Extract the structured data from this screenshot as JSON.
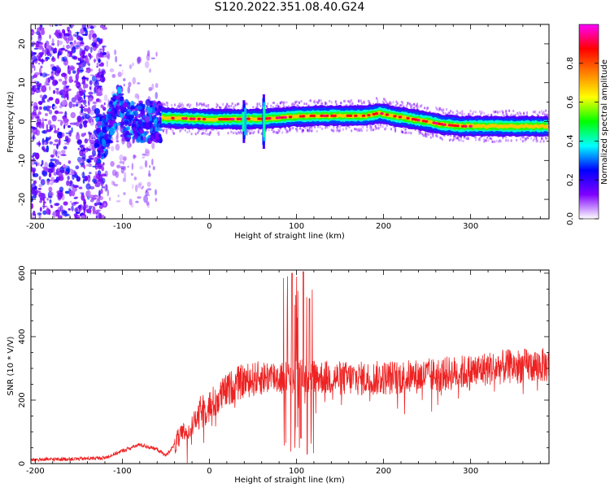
{
  "figure": {
    "title": "S120.2022.351.08.40.G24"
  },
  "chart_data": [
    {
      "type": "heatmap",
      "xlabel": "Height of straight line (km)",
      "ylabel": "Frequency (Hz)",
      "xlim": [
        -205,
        390
      ],
      "ylim": [
        -25,
        25
      ],
      "x_ticks": [
        -200,
        -100,
        0,
        100,
        200,
        300
      ],
      "y_ticks": [
        -20,
        -10,
        0,
        10,
        20
      ],
      "colorbar": {
        "label": "Normalized spectral amplitude",
        "range": [
          0,
          1
        ],
        "ticks": [
          0.0,
          0.2,
          0.4,
          0.6,
          0.8
        ],
        "colormap": [
          "#ffffff",
          "#7f00ff",
          "#0000ff",
          "#00ffff",
          "#00ff00",
          "#ffff00",
          "#ff8000",
          "#ff0000",
          "#ff00ff"
        ]
      },
      "ridge": {
        "x": [
          -55,
          -30,
          0,
          20,
          40,
          60,
          80,
          100,
          120,
          140,
          160,
          180,
          195,
          210,
          230,
          250,
          270,
          290,
          320,
          350,
          390
        ],
        "y": [
          1.0,
          0.8,
          0.6,
          0.6,
          0.7,
          0.7,
          1.0,
          1.3,
          1.5,
          1.5,
          1.5,
          1.5,
          2.2,
          1.5,
          0.8,
          0.0,
          -0.8,
          -1.2,
          -1.2,
          -1.2,
          -1.2
        ]
      },
      "grid": false
    },
    {
      "type": "line",
      "xlabel": "Height of straight line (km)",
      "ylabel": "SNR (10 * V/V)",
      "xlim": [
        -205,
        390
      ],
      "ylim": [
        0,
        610
      ],
      "x_ticks": [
        -200,
        -100,
        0,
        100,
        200,
        300
      ],
      "y_ticks": [
        0,
        200,
        400,
        600
      ],
      "series": [
        {
          "color": "#ee2222",
          "envelope_x": [
            -205,
            -150,
            -120,
            -100,
            -80,
            -60,
            -50,
            -40,
            -30,
            -20,
            -10,
            0,
            10,
            20,
            30,
            40,
            50,
            60,
            70,
            80,
            90,
            100,
            110,
            120,
            140,
            160,
            180,
            200,
            220,
            240,
            260,
            280,
            300,
            320,
            340,
            360,
            390
          ],
          "envelope_y": [
            12,
            15,
            18,
            40,
            60,
            45,
            25,
            60,
            95,
            120,
            160,
            180,
            205,
            230,
            250,
            260,
            265,
            270,
            275,
            272,
            270,
            275,
            280,
            275,
            270,
            268,
            268,
            270,
            272,
            275,
            280,
            285,
            290,
            300,
            305,
            308,
            310
          ],
          "spikes": [
            [
              95,
              600
            ],
            [
              100,
              40
            ],
            [
              108,
              605
            ],
            [
              112,
              30
            ],
            [
              115,
              520
            ],
            [
              98,
              500
            ],
            [
              105,
              80
            ]
          ]
        }
      ],
      "grid": false
    }
  ]
}
